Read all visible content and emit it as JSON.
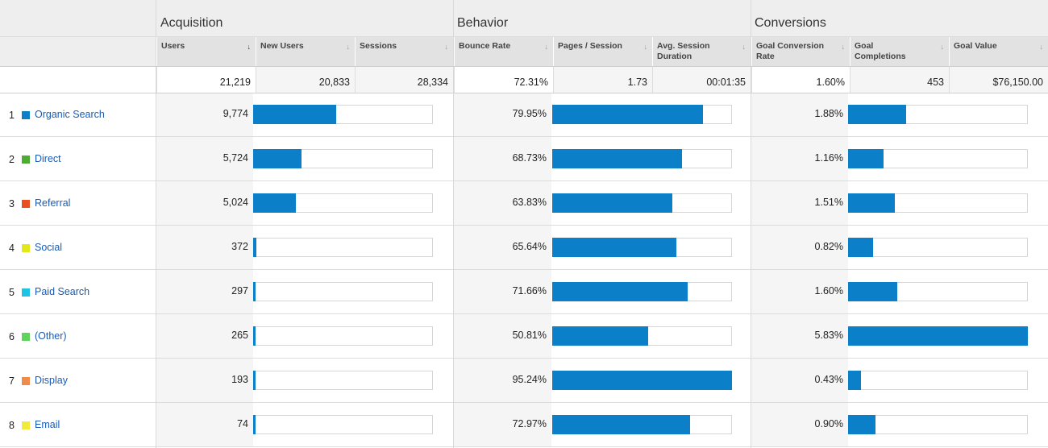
{
  "groups": {
    "acquisition": "Acquisition",
    "behavior": "Behavior",
    "conversions": "Conversions"
  },
  "columns": {
    "users": "Users",
    "new_users": "New Users",
    "sessions": "Sessions",
    "bounce_rate": "Bounce Rate",
    "pages_session": "Pages / Session",
    "avg_session_1": "Avg. Session",
    "avg_session_2": "Duration",
    "goal_conv_1": "Goal Conversion",
    "goal_conv_2": "Rate",
    "goal_comp_1": "Goal",
    "goal_comp_2": "Completions",
    "goal_value": "Goal Value"
  },
  "sort_icons": {
    "active": "↓",
    "inactive": "↓"
  },
  "totals": {
    "users": "21,219",
    "new_users": "20,833",
    "sessions": "28,334",
    "bounce_rate": "72.31%",
    "pages_session": "1.73",
    "avg_session": "00:01:35",
    "goal_conv": "1.60%",
    "goal_comp": "453",
    "goal_value": "$76,150.00"
  },
  "rows": [
    {
      "num": "1",
      "channel": "Organic Search",
      "color": "#0b7fc7",
      "users": "9,774",
      "users_pct": 0.4606,
      "bounce": "79.95%",
      "bounce_pct": 0.8395,
      "conv": "1.88%",
      "conv_pct": 0.3225
    },
    {
      "num": "2",
      "channel": "Direct",
      "color": "#4cac34",
      "users": "5,724",
      "users_pct": 0.2698,
      "bounce": "68.73%",
      "bounce_pct": 0.7216,
      "conv": "1.16%",
      "conv_pct": 0.199
    },
    {
      "num": "3",
      "channel": "Referral",
      "color": "#e8501f",
      "users": "5,024",
      "users_pct": 0.2368,
      "bounce": "63.83%",
      "bounce_pct": 0.6702,
      "conv": "1.51%",
      "conv_pct": 0.259
    },
    {
      "num": "4",
      "channel": "Social",
      "color": "#e3e81a",
      "users": "372",
      "users_pct": 0.0175,
      "bounce": "65.64%",
      "bounce_pct": 0.6892,
      "conv": "0.82%",
      "conv_pct": 0.1407
    },
    {
      "num": "5",
      "channel": "Paid Search",
      "color": "#1ec3e6",
      "users": "297",
      "users_pct": 0.014,
      "bounce": "71.66%",
      "bounce_pct": 0.7524,
      "conv": "1.60%",
      "conv_pct": 0.2744
    },
    {
      "num": "6",
      "channel": "(Other)",
      "color": "#5fd45a",
      "users": "265",
      "users_pct": 0.0125,
      "bounce": "50.81%",
      "bounce_pct": 0.5335,
      "conv": "5.83%",
      "conv_pct": 1.0
    },
    {
      "num": "7",
      "channel": "Display",
      "color": "#f28a4a",
      "users": "193",
      "users_pct": 0.0091,
      "bounce": "95.24%",
      "bounce_pct": 1.0,
      "conv": "0.43%",
      "conv_pct": 0.0738
    },
    {
      "num": "8",
      "channel": "Email",
      "color": "#f0ea3c",
      "users": "74",
      "users_pct": 0.0035,
      "bounce": "72.97%",
      "bounce_pct": 0.7662,
      "conv": "0.90%",
      "conv_pct": 0.1544
    }
  ]
}
